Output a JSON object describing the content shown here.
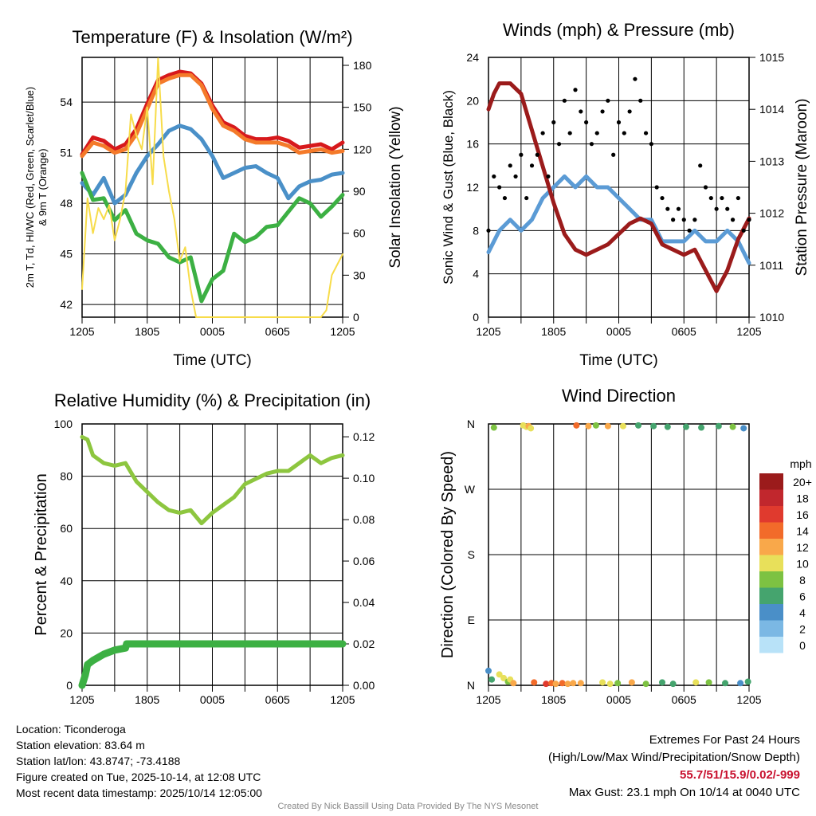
{
  "time_ticks": [
    "1205",
    "1805",
    "0005",
    "0605",
    "1205"
  ],
  "chart_data": [
    {
      "type": "line",
      "title": "Temperature (F) & Insolation (W/m²)",
      "xlabel": "Time (UTC)",
      "ylabel": "2m T, Td, HI/WC (Red, Green, Scarlet/Blue) & 9m T (Orange)",
      "ylabel2": "Solar Insolation (Yellow)",
      "xlim": [
        0,
        24
      ],
      "ylim": [
        41.25,
        56.65
      ],
      "ylim2": [
        0,
        185.7
      ],
      "yticks": [
        42,
        45,
        48,
        51,
        54
      ],
      "yticks2": [
        0,
        30,
        60,
        90,
        120,
        150,
        180
      ],
      "series": [
        {
          "name": "2m T",
          "color": "#d7191c",
          "axis": "left",
          "x": [
            0,
            1,
            2,
            3,
            4,
            5,
            6,
            7,
            8,
            9,
            10,
            11,
            12,
            13,
            14,
            15,
            16,
            17,
            18,
            19,
            20,
            21,
            22,
            23,
            24
          ],
          "values": [
            50.9,
            51.9,
            51.7,
            51.2,
            51.5,
            52.4,
            53.9,
            55.3,
            55.6,
            55.8,
            55.7,
            55.1,
            53.8,
            52.8,
            52.5,
            52.0,
            51.8,
            51.8,
            51.9,
            51.7,
            51.3,
            51.4,
            51.5,
            51.2,
            51.6
          ]
        },
        {
          "name": "9m T",
          "color": "#f47a2a",
          "axis": "left",
          "x": [
            0,
            1,
            2,
            3,
            4,
            5,
            6,
            7,
            8,
            9,
            10,
            11,
            12,
            13,
            14,
            15,
            16,
            17,
            18,
            19,
            20,
            21,
            22,
            23,
            24
          ],
          "values": [
            50.8,
            51.6,
            51.4,
            51.0,
            51.2,
            52.1,
            53.6,
            55.1,
            55.4,
            55.6,
            55.6,
            55.0,
            53.6,
            52.6,
            52.3,
            51.8,
            51.6,
            51.6,
            51.6,
            51.4,
            51.0,
            51.1,
            51.2,
            51.0,
            51.1
          ]
        },
        {
          "name": "HI/WC",
          "color": "#4a90c8",
          "axis": "left",
          "x": [
            0,
            1,
            2,
            3,
            4,
            5,
            6,
            7,
            8,
            9,
            10,
            11,
            12,
            13,
            14,
            15,
            16,
            17,
            18,
            19,
            20,
            21,
            22,
            23,
            24
          ],
          "values": [
            49.2,
            48.5,
            49.5,
            48.0,
            48.5,
            49.8,
            50.8,
            51.5,
            52.3,
            52.6,
            52.4,
            51.8,
            50.8,
            49.5,
            49.8,
            50.1,
            50.2,
            49.8,
            49.5,
            48.3,
            49.0,
            49.3,
            49.4,
            49.7,
            49.8
          ]
        },
        {
          "name": "Td",
          "color": "#3cb043",
          "axis": "left",
          "x": [
            0,
            1,
            2,
            3,
            4,
            5,
            6,
            7,
            8,
            9,
            10,
            11,
            12,
            13,
            14,
            15,
            16,
            17,
            18,
            19,
            20,
            21,
            22,
            23,
            24
          ],
          "values": [
            49.8,
            48.2,
            48.3,
            47.0,
            47.6,
            46.2,
            45.8,
            45.6,
            44.8,
            44.5,
            44.8,
            42.2,
            43.5,
            44.0,
            46.2,
            45.7,
            46.0,
            46.6,
            46.7,
            47.5,
            48.3,
            48.0,
            47.2,
            47.8,
            48.5
          ]
        },
        {
          "name": "Solar Insolation",
          "color": "#f7dc4a",
          "axis": "right",
          "x": [
            0,
            0.5,
            1,
            1.5,
            2,
            2.5,
            3,
            3.5,
            4,
            4.5,
            5,
            5.5,
            6,
            6.5,
            7,
            7.5,
            8,
            8.5,
            9,
            9.5,
            10,
            10.5,
            22,
            22.5,
            23,
            24
          ],
          "values": [
            20,
            85,
            60,
            78,
            70,
            80,
            55,
            70,
            90,
            145,
            130,
            120,
            150,
            95,
            185,
            115,
            90,
            70,
            40,
            50,
            20,
            0,
            0,
            5,
            30,
            45
          ]
        }
      ]
    },
    {
      "type": "line",
      "title": "Winds (mph) & Pressure (mb)",
      "xlabel": "Time (UTC)",
      "ylabel": "Sonic Wind & Gust (Blue, Black)",
      "ylabel2": "Station Pressure (Maroon)",
      "xlim": [
        0,
        24
      ],
      "ylim": [
        0,
        24
      ],
      "ylim2": [
        1010,
        1015
      ],
      "yticks": [
        0,
        4,
        8,
        12,
        16,
        20,
        24
      ],
      "yticks2": [
        1010,
        1011,
        1012,
        1013,
        1014,
        1015
      ],
      "series": [
        {
          "name": "Sonic Wind",
          "color": "#5b9bd5",
          "axis": "left",
          "x": [
            0,
            1,
            2,
            3,
            4,
            5,
            6,
            7,
            8,
            9,
            10,
            11,
            12,
            13,
            14,
            15,
            16,
            17,
            18,
            19,
            20,
            21,
            22,
            23,
            24
          ],
          "values": [
            6,
            8,
            9,
            8,
            9,
            11,
            12,
            13,
            12,
            13,
            12,
            12,
            11,
            10,
            9,
            9,
            7,
            7,
            7,
            8,
            7,
            7,
            8,
            7,
            5
          ]
        },
        {
          "name": "Station Pressure",
          "color": "#9b1b1b",
          "axis": "right",
          "x": [
            0,
            0.5,
            1,
            2,
            3,
            4,
            5,
            6,
            7,
            8,
            9,
            10,
            11,
            12,
            13,
            14,
            15,
            16,
            17,
            18,
            19,
            20,
            21,
            22,
            23,
            24
          ],
          "values": [
            1014.0,
            1014.3,
            1014.5,
            1014.5,
            1014.3,
            1013.6,
            1012.9,
            1012.2,
            1011.6,
            1011.3,
            1011.2,
            1011.3,
            1011.4,
            1011.6,
            1011.8,
            1011.9,
            1011.8,
            1011.4,
            1011.3,
            1011.2,
            1011.3,
            1010.9,
            1010.5,
            1010.9,
            1011.5,
            1011.9
          ]
        },
        {
          "name": "Gust",
          "color": "#000000",
          "axis": "left",
          "type": "scatter",
          "x": [
            0,
            0.5,
            1,
            1.5,
            2,
            2.5,
            3,
            3.5,
            4,
            4.5,
            5,
            5.5,
            6,
            6.5,
            7,
            7.5,
            8,
            8.5,
            9,
            9.5,
            10,
            10.5,
            11,
            11.5,
            12,
            12.5,
            13,
            13.5,
            14,
            14.5,
            15,
            15.5,
            16,
            16.5,
            17,
            17.5,
            18,
            18.5,
            19,
            19.5,
            20,
            20.5,
            21,
            21.5,
            22,
            22.5,
            23,
            23.5,
            24
          ],
          "values": [
            8,
            13,
            12,
            11,
            14,
            13,
            15,
            11,
            14,
            15,
            17,
            13,
            18,
            16,
            20,
            17,
            21,
            19,
            18,
            16,
            17,
            19,
            20,
            15,
            18,
            17,
            19,
            22,
            20,
            17,
            16,
            12,
            11,
            10,
            9,
            10,
            9,
            8,
            9,
            14,
            12,
            11,
            10,
            11,
            10,
            9,
            11,
            8,
            9
          ]
        }
      ]
    },
    {
      "type": "line",
      "title": "Relative Humidity (%) & Precipitation (in)",
      "xlabel": "",
      "ylabel": "Percent & Precipitation",
      "xlim": [
        0,
        24
      ],
      "ylim": [
        0,
        100
      ],
      "ylim2": [
        0,
        0.1262
      ],
      "yticks": [
        0,
        20,
        40,
        60,
        80,
        100
      ],
      "yticks2": [
        "0.00",
        "0.02",
        "0.04",
        "0.06",
        "0.08",
        "0.10",
        "0.12"
      ],
      "series": [
        {
          "name": "Relative Humidity",
          "color": "#8dc63f",
          "axis": "left",
          "x": [
            0,
            0.5,
            1,
            2,
            3,
            4,
            5,
            6,
            7,
            8,
            9,
            10,
            11,
            12,
            13,
            14,
            15,
            16,
            17,
            18,
            19,
            20,
            21,
            22,
            23,
            24
          ],
          "values": [
            95,
            94,
            88,
            85,
            84,
            85,
            78,
            74,
            70,
            67,
            66,
            67,
            62,
            66,
            69,
            72,
            77,
            79,
            81,
            82,
            82,
            85,
            88,
            85,
            87,
            88
          ]
        },
        {
          "name": "Precipitation",
          "color": "#3cb043",
          "axis": "right",
          "x": [
            0,
            0.3,
            0.5,
            1,
            2,
            3,
            4,
            4.1,
            24
          ],
          "values": [
            0,
            0.005,
            0.01,
            0.012,
            0.015,
            0.017,
            0.018,
            0.02,
            0.02
          ]
        }
      ]
    },
    {
      "type": "scatter",
      "title": "Wind Direction",
      "ylabel": "Direction (Colored By Speed)",
      "xlim": [
        0,
        24
      ],
      "ylim": [
        0,
        360
      ],
      "yticks": [
        "N",
        "E",
        "S",
        "W",
        "N"
      ],
      "legend": {
        "title": "mph",
        "labels": [
          "20+",
          "18",
          "16",
          "14",
          "12",
          "10",
          "8",
          "6",
          "4",
          "2",
          "0"
        ],
        "colors": [
          "#9b1b1b",
          "#c1272d",
          "#e03a2e",
          "#f26b2a",
          "#f9a84a",
          "#e8e05a",
          "#7dc242",
          "#45a46e",
          "#4a8fc8",
          "#7bb8e4",
          "#b8e2f8"
        ]
      },
      "points": [
        [
          0,
          20,
          4
        ],
        [
          0.3,
          8,
          6
        ],
        [
          0.5,
          355,
          8
        ],
        [
          1,
          15,
          10
        ],
        [
          1.4,
          10,
          11
        ],
        [
          1.8,
          5,
          9
        ],
        [
          2,
          8,
          10
        ],
        [
          2.3,
          3,
          12
        ],
        [
          3.2,
          358,
          11
        ],
        [
          3.5,
          356,
          10
        ],
        [
          3.7,
          357,
          12
        ],
        [
          3.9,
          354,
          10
        ],
        [
          4.2,
          4,
          14
        ],
        [
          5.3,
          2,
          16
        ],
        [
          5.8,
          3,
          15
        ],
        [
          6.2,
          2,
          13
        ],
        [
          6.8,
          3,
          14
        ],
        [
          7.3,
          2,
          13
        ],
        [
          7.8,
          3,
          12
        ],
        [
          8.1,
          358,
          14
        ],
        [
          8.5,
          3,
          13
        ],
        [
          9.2,
          357,
          12
        ],
        [
          9.9,
          358,
          8
        ],
        [
          10.5,
          4,
          11
        ],
        [
          11,
          357,
          12
        ],
        [
          11.2,
          2,
          10
        ],
        [
          11.9,
          3,
          8
        ],
        [
          12.4,
          357,
          10
        ],
        [
          13.2,
          4,
          12
        ],
        [
          13.8,
          358,
          7
        ],
        [
          14.5,
          2,
          8
        ],
        [
          15.2,
          357,
          6
        ],
        [
          16,
          4,
          6
        ],
        [
          16.5,
          356,
          7
        ],
        [
          17,
          2,
          6
        ],
        [
          18.2,
          356,
          6
        ],
        [
          19.1,
          4,
          10
        ],
        [
          19.6,
          355,
          7
        ],
        [
          20.3,
          4,
          8
        ],
        [
          21.2,
          357,
          7
        ],
        [
          21.8,
          3,
          6
        ],
        [
          22.5,
          356,
          8
        ],
        [
          23.2,
          3,
          4
        ],
        [
          23.5,
          354,
          4
        ],
        [
          23.9,
          5,
          6
        ]
      ]
    }
  ],
  "footer": {
    "location": "Location: Ticonderoga",
    "elevation": "Station elevation: 83.64 m",
    "latlon": "Station lat/lon: 43.8747; -73.4188",
    "created": "Figure created on Tue, 2025-10-14, at 12:08 UTC",
    "recent": "Most recent data timestamp: 2025/10/14 12:05:00",
    "extremes_title": "Extremes For Past 24 Hours",
    "extremes_sub": "(High/Low/Max Wind/Precipitation/Snow Depth)",
    "extremes_values": "55.7/51/15.9/0.02/-999",
    "max_gust": "Max Gust: 23.1 mph On 10/14 at 0040 UTC",
    "credit": "Created By Nick Bassill Using Data Provided By The NYS Mesonet"
  }
}
